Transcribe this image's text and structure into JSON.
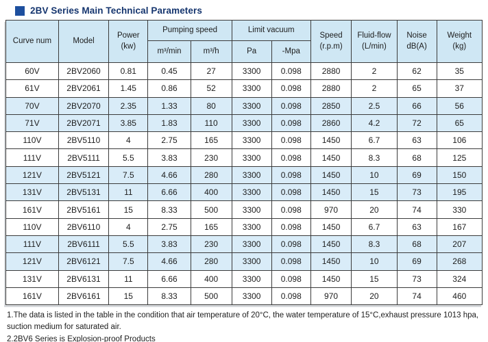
{
  "title": "2BV Series Main Technical Parameters",
  "colors": {
    "title_text": "#15356e",
    "bullet_blue": "#1d4f9e",
    "header_bg": "#cfe7f4",
    "shaded_row_bg": "#d9ecf8",
    "border": "#3a3a3a"
  },
  "table": {
    "header": {
      "curve_num": "Curve num",
      "model": "Model",
      "power": [
        "Power",
        "(kw)"
      ],
      "pumping_speed": "Pumping speed",
      "m3_min": "m³/min",
      "m3_h": "m³/h",
      "limit_vacuum": "Limit vacuum",
      "pa": "Pa",
      "neg_mpa": "-Mpa",
      "speed": [
        "Speed",
        "(r.p.m)"
      ],
      "fluid_flow": [
        "Fluid-flow",
        "(L/min)"
      ],
      "noise": [
        "Noise",
        "dB(A)"
      ],
      "weight": [
        "Weight",
        "(kg)"
      ]
    },
    "col_keys": [
      "curve-num",
      "model",
      "power",
      "m3-min",
      "m3-h",
      "pa",
      "neg-mpa",
      "speed",
      "fluid-flow",
      "noise",
      "weight"
    ],
    "rows": [
      [
        "60V",
        "2BV2060",
        "0.81",
        "0.45",
        "27",
        "3300",
        "0.098",
        "2880",
        "2",
        "62",
        "35"
      ],
      [
        "61V",
        "2BV2061",
        "1.45",
        "0.86",
        "52",
        "3300",
        "0.098",
        "2880",
        "2",
        "65",
        "37"
      ],
      [
        "70V",
        "2BV2070",
        "2.35",
        "1.33",
        "80",
        "3300",
        "0.098",
        "2850",
        "2.5",
        "66",
        "56"
      ],
      [
        "71V",
        "2BV2071",
        "3.85",
        "1.83",
        "110",
        "3300",
        "0.098",
        "2860",
        "4.2",
        "72",
        "65"
      ],
      [
        "110V",
        "2BV5110",
        "4",
        "2.75",
        "165",
        "3300",
        "0.098",
        "1450",
        "6.7",
        "63",
        "106"
      ],
      [
        "111V",
        "2BV5111",
        "5.5",
        "3.83",
        "230",
        "3300",
        "0.098",
        "1450",
        "8.3",
        "68",
        "125"
      ],
      [
        "121V",
        "2BV5121",
        "7.5",
        "4.66",
        "280",
        "3300",
        "0.098",
        "1450",
        "10",
        "69",
        "150"
      ],
      [
        "131V",
        "2BV5131",
        "11",
        "6.66",
        "400",
        "3300",
        "0.098",
        "1450",
        "15",
        "73",
        "195"
      ],
      [
        "161V",
        "2BV5161",
        "15",
        "8.33",
        "500",
        "3300",
        "0.098",
        "970",
        "20",
        "74",
        "330"
      ],
      [
        "110V",
        "2BV6110",
        "4",
        "2.75",
        "165",
        "3300",
        "0.098",
        "1450",
        "6.7",
        "63",
        "167"
      ],
      [
        "111V",
        "2BV6111",
        "5.5",
        "3.83",
        "230",
        "3300",
        "0.098",
        "1450",
        "8.3",
        "68",
        "207"
      ],
      [
        "121V",
        "2BV6121",
        "7.5",
        "4.66",
        "280",
        "3300",
        "0.098",
        "1450",
        "10",
        "69",
        "268"
      ],
      [
        "131V",
        "2BV6131",
        "11",
        "6.66",
        "400",
        "3300",
        "0.098",
        "1450",
        "15",
        "73",
        "324"
      ],
      [
        "161V",
        "2BV6161",
        "15",
        "8.33",
        "500",
        "3300",
        "0.098",
        "970",
        "20",
        "74",
        "460"
      ]
    ]
  },
  "notes": [
    "1.The data is listed in the table in the condition that air temperature of 20°C, the water temperature of 15°C,exhaust pressure 1013 hpa, suction medium for saturated air.",
    "2.2BV6 Series is Explosion-proof Products"
  ]
}
